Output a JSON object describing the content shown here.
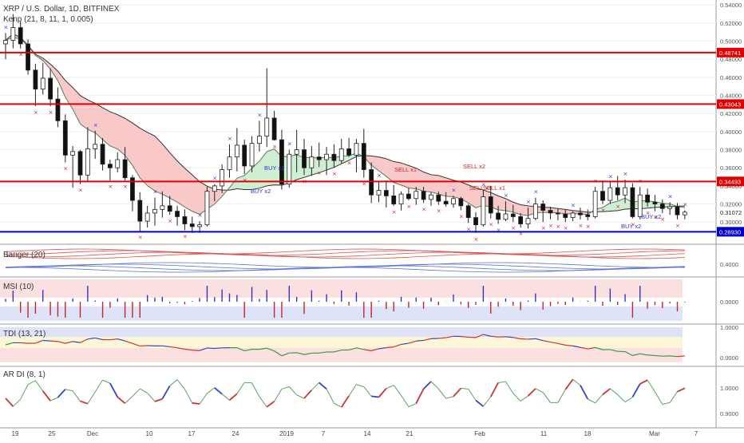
{
  "header": {
    "title": "XRP / U.S. Dollar, 1D, BITFINEX",
    "indicator": "Kenp (21, 8, 11, 1, 0.005)"
  },
  "panes": {
    "bands": "Banger (20)",
    "msi": "MSI (10)",
    "tdi": "TDI (13, 21)",
    "ardi": "AR DI (8, 1)"
  },
  "colors": {
    "bull": "#4d4d4d",
    "bear": "#111111",
    "buy_marker": "#3333cc",
    "sell_marker": "#cc2222",
    "resistance": "#e00000",
    "support": "#0000cc",
    "ribbon_red": "#f7b7b7",
    "ribbon_green": "#bfe9c4",
    "band_red": "#e05050",
    "band_blue": "#5a6fd6"
  },
  "chart_data": {
    "type": "candlestick",
    "y_ticks": [
      "0.54000",
      "0.52000",
      "0.50000",
      "0.48000",
      "0.46000",
      "0.44000",
      "0.42000",
      "0.40000",
      "0.38000",
      "0.36000",
      "0.34000",
      "0.32000",
      "0.30000"
    ],
    "horizontal_levels": [
      {
        "label": "0.48741",
        "value": 0.48741,
        "color": "#e00000"
      },
      {
        "label": "0.43043",
        "value": 0.43043,
        "color": "#e00000"
      },
      {
        "label": "0.34493",
        "value": 0.34493,
        "color": "#e00000"
      },
      {
        "label": "0.28930",
        "value": 0.2893,
        "color": "#0000cc"
      }
    ],
    "last_price": "0.31072",
    "x_ticks": [
      "19",
      "25",
      "Dec",
      "10",
      "17",
      "24",
      "2019",
      "7",
      "14",
      "21",
      "Feb",
      "11",
      "18",
      "Mar",
      "7"
    ],
    "signal_labels": [
      "BUY x1",
      "BUY x2",
      "SELL x1",
      "SELL x2",
      "SELL x1",
      "SELL x1",
      "BUY x2",
      "BUY x2"
    ],
    "candles": [
      [
        0.497,
        0.509,
        0.48,
        0.501
      ],
      [
        0.501,
        0.53,
        0.492,
        0.515
      ],
      [
        0.515,
        0.522,
        0.492,
        0.497
      ],
      [
        0.497,
        0.502,
        0.463,
        0.468
      ],
      [
        0.468,
        0.475,
        0.428,
        0.447
      ],
      [
        0.447,
        0.476,
        0.441,
        0.459
      ],
      [
        0.459,
        0.47,
        0.428,
        0.436
      ],
      [
        0.436,
        0.449,
        0.405,
        0.412
      ],
      [
        0.412,
        0.419,
        0.366,
        0.374
      ],
      [
        0.374,
        0.384,
        0.338,
        0.378
      ],
      [
        0.378,
        0.38,
        0.342,
        0.352
      ],
      [
        0.352,
        0.405,
        0.345,
        0.381
      ],
      [
        0.381,
        0.401,
        0.37,
        0.386
      ],
      [
        0.386,
        0.393,
        0.357,
        0.364
      ],
      [
        0.364,
        0.369,
        0.346,
        0.36
      ],
      [
        0.36,
        0.377,
        0.355,
        0.369
      ],
      [
        0.369,
        0.383,
        0.346,
        0.349
      ],
      [
        0.349,
        0.352,
        0.312,
        0.324
      ],
      [
        0.324,
        0.333,
        0.29,
        0.301
      ],
      [
        0.301,
        0.318,
        0.294,
        0.31
      ],
      [
        0.31,
        0.327,
        0.296,
        0.314
      ],
      [
        0.314,
        0.334,
        0.305,
        0.318
      ],
      [
        0.318,
        0.329,
        0.308,
        0.312
      ],
      [
        0.312,
        0.318,
        0.296,
        0.306
      ],
      [
        0.306,
        0.314,
        0.291,
        0.298
      ],
      [
        0.298,
        0.306,
        0.288,
        0.295
      ],
      [
        0.295,
        0.301,
        0.288,
        0.297
      ],
      [
        0.297,
        0.339,
        0.295,
        0.334
      ],
      [
        0.334,
        0.342,
        0.323,
        0.34
      ],
      [
        0.34,
        0.364,
        0.332,
        0.358
      ],
      [
        0.358,
        0.386,
        0.349,
        0.372
      ],
      [
        0.372,
        0.404,
        0.356,
        0.385
      ],
      [
        0.385,
        0.391,
        0.353,
        0.362
      ],
      [
        0.362,
        0.395,
        0.355,
        0.387
      ],
      [
        0.387,
        0.412,
        0.378,
        0.395
      ],
      [
        0.395,
        0.47,
        0.383,
        0.415
      ],
      [
        0.415,
        0.423,
        0.39,
        0.391
      ],
      [
        0.391,
        0.402,
        0.336,
        0.342
      ],
      [
        0.342,
        0.38,
        0.338,
        0.375
      ],
      [
        0.375,
        0.402,
        0.355,
        0.38
      ],
      [
        0.38,
        0.392,
        0.352,
        0.36
      ],
      [
        0.36,
        0.384,
        0.351,
        0.372
      ],
      [
        0.372,
        0.388,
        0.361,
        0.369
      ],
      [
        0.369,
        0.383,
        0.352,
        0.375
      ],
      [
        0.375,
        0.386,
        0.36,
        0.368
      ],
      [
        0.368,
        0.392,
        0.365,
        0.381
      ],
      [
        0.381,
        0.393,
        0.372,
        0.374
      ],
      [
        0.374,
        0.392,
        0.355,
        0.387
      ],
      [
        0.387,
        0.403,
        0.349,
        0.358
      ],
      [
        0.358,
        0.366,
        0.321,
        0.33
      ],
      [
        0.33,
        0.345,
        0.322,
        0.335
      ],
      [
        0.335,
        0.346,
        0.316,
        0.329
      ],
      [
        0.329,
        0.341,
        0.318,
        0.32
      ],
      [
        0.32,
        0.334,
        0.313,
        0.331
      ],
      [
        0.331,
        0.338,
        0.324,
        0.326
      ],
      [
        0.326,
        0.339,
        0.319,
        0.334
      ],
      [
        0.334,
        0.339,
        0.321,
        0.325
      ],
      [
        0.325,
        0.333,
        0.318,
        0.33
      ],
      [
        0.33,
        0.334,
        0.319,
        0.323
      ],
      [
        0.323,
        0.333,
        0.317,
        0.32
      ],
      [
        0.32,
        0.329,
        0.316,
        0.326
      ],
      [
        0.326,
        0.328,
        0.313,
        0.318
      ],
      [
        0.318,
        0.32,
        0.299,
        0.305
      ],
      [
        0.305,
        0.311,
        0.288,
        0.297
      ],
      [
        0.297,
        0.335,
        0.295,
        0.328
      ],
      [
        0.328,
        0.34,
        0.304,
        0.31
      ],
      [
        0.31,
        0.318,
        0.298,
        0.303
      ],
      [
        0.303,
        0.323,
        0.301,
        0.309
      ],
      [
        0.309,
        0.319,
        0.3,
        0.306
      ],
      [
        0.306,
        0.31,
        0.294,
        0.298
      ],
      [
        0.298,
        0.316,
        0.293,
        0.304
      ],
      [
        0.304,
        0.327,
        0.302,
        0.32
      ],
      [
        0.32,
        0.324,
        0.3,
        0.313
      ],
      [
        0.313,
        0.317,
        0.303,
        0.31
      ],
      [
        0.31,
        0.315,
        0.302,
        0.309
      ],
      [
        0.309,
        0.314,
        0.3,
        0.305
      ],
      [
        0.305,
        0.312,
        0.301,
        0.31
      ],
      [
        0.31,
        0.316,
        0.303,
        0.308
      ],
      [
        0.308,
        0.314,
        0.302,
        0.306
      ],
      [
        0.306,
        0.339,
        0.304,
        0.334
      ],
      [
        0.334,
        0.346,
        0.32,
        0.324
      ],
      [
        0.324,
        0.344,
        0.32,
        0.338
      ],
      [
        0.338,
        0.351,
        0.324,
        0.33
      ],
      [
        0.33,
        0.347,
        0.321,
        0.338
      ],
      [
        0.338,
        0.343,
        0.304,
        0.306
      ],
      [
        0.306,
        0.339,
        0.303,
        0.33
      ],
      [
        0.33,
        0.337,
        0.317,
        0.322
      ],
      [
        0.322,
        0.33,
        0.312,
        0.32
      ],
      [
        0.32,
        0.325,
        0.31,
        0.315
      ],
      [
        0.315,
        0.322,
        0.308,
        0.317
      ],
      [
        0.317,
        0.321,
        0.303,
        0.308
      ],
      [
        0.308,
        0.313,
        0.303,
        0.311
      ]
    ]
  }
}
